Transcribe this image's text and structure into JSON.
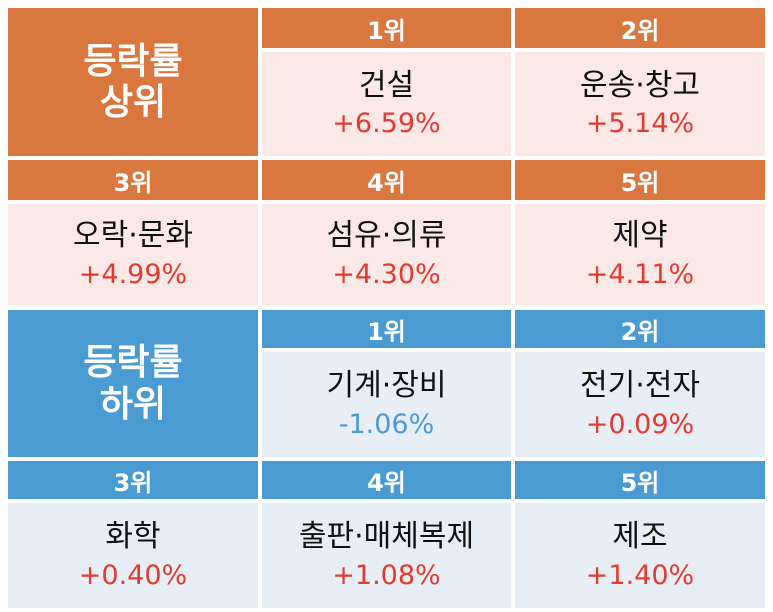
{
  "colors": {
    "top_header": "#d9773f",
    "top_body": "#fbe9e8",
    "bottom_header": "#4a9bd2",
    "bottom_body": "#e7eef5",
    "positive": "#e53a2f",
    "negative": "#4a9bd2"
  },
  "panels": [
    {
      "title_line1": "등락률",
      "title_line2": "상위",
      "items": [
        {
          "rank": "1위",
          "name": "건설",
          "rate": "+6.59%",
          "sign": "positive"
        },
        {
          "rank": "2위",
          "name": "운송·창고",
          "rate": "+5.14%",
          "sign": "positive"
        },
        {
          "rank": "3위",
          "name": "오락·문화",
          "rate": "+4.99%",
          "sign": "positive"
        },
        {
          "rank": "4위",
          "name": "섬유·의류",
          "rate": "+4.30%",
          "sign": "positive"
        },
        {
          "rank": "5위",
          "name": "제약",
          "rate": "+4.11%",
          "sign": "positive"
        }
      ]
    },
    {
      "title_line1": "등락률",
      "title_line2": "하위",
      "items": [
        {
          "rank": "1위",
          "name": "기계·장비",
          "rate": "-1.06%",
          "sign": "negative"
        },
        {
          "rank": "2위",
          "name": "전기·전자",
          "rate": "+0.09%",
          "sign": "positive"
        },
        {
          "rank": "3위",
          "name": "화학",
          "rate": "+0.40%",
          "sign": "positive"
        },
        {
          "rank": "4위",
          "name": "출판·매체복제",
          "rate": "+1.08%",
          "sign": "positive"
        },
        {
          "rank": "5위",
          "name": "제조",
          "rate": "+1.40%",
          "sign": "positive"
        }
      ]
    }
  ]
}
